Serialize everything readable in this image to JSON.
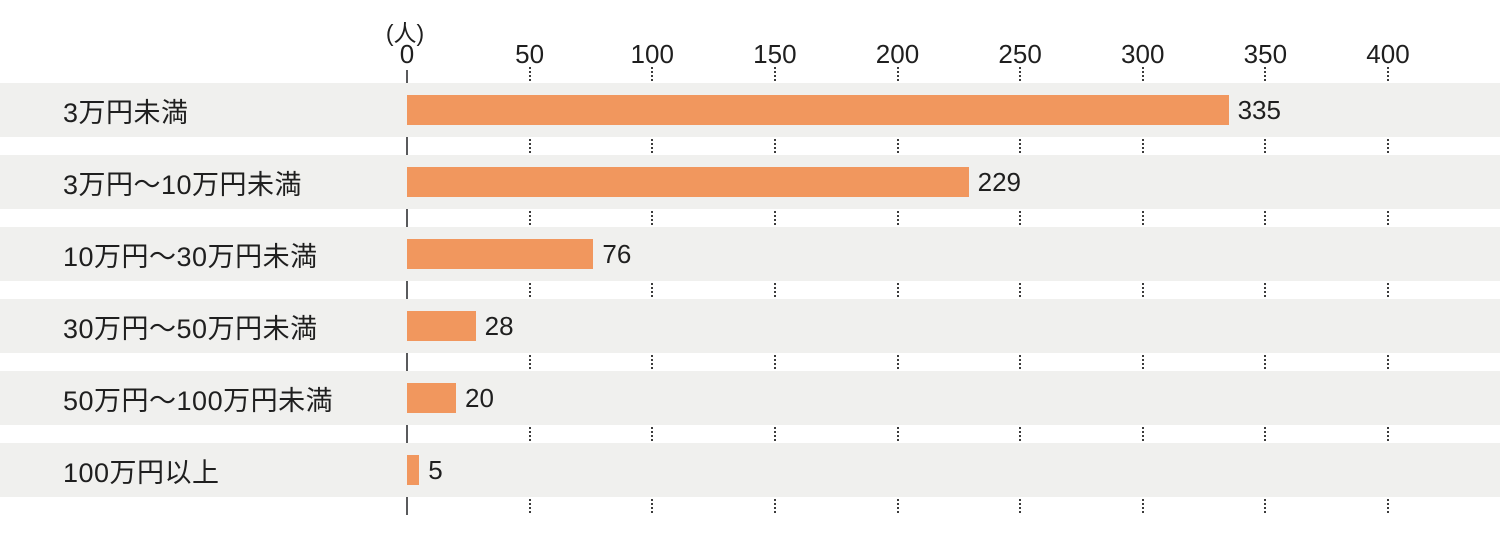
{
  "chart_data": {
    "type": "bar",
    "orientation": "horizontal",
    "title": "",
    "unit_label": "(人)",
    "categories": [
      "3万円未満",
      "3万円～10万円未満",
      "10万円～30万円未満",
      "30万円～50万円未満",
      "50万円～100万円未満",
      "100万円以上"
    ],
    "values": [
      335,
      229,
      76,
      28,
      20,
      5
    ],
    "value_labels": [
      "335",
      "229",
      "76",
      "28",
      "20",
      "5"
    ],
    "x_ticks": [
      0,
      50,
      100,
      150,
      200,
      250,
      300,
      350,
      400
    ],
    "xlim": [
      0,
      400
    ],
    "grid": "dotted vertical segments between row bands",
    "legend_position": "none",
    "colors": {
      "bar": "#f1975e",
      "row_band": "#f0f0ee",
      "axis_line": "#595a5c",
      "grid_dot": "#3b3b3b",
      "text": "#1f1f1f",
      "background": "#ffffff"
    }
  }
}
